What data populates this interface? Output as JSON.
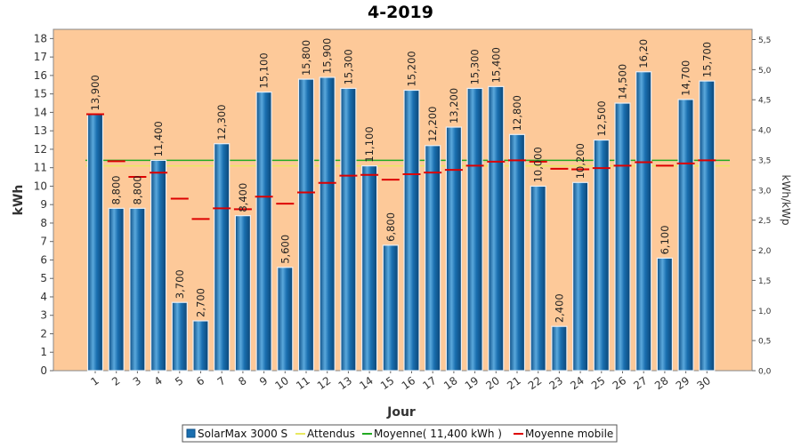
{
  "chart_data": {
    "type": "bar",
    "title": "4-2019",
    "xlabel": "Jour",
    "ylabel": "kWh",
    "y2label": "kWh/kWp",
    "ylim": [
      0,
      18.5
    ],
    "y2lim": [
      0,
      5.67
    ],
    "yticks": [
      "0",
      "1",
      "2",
      "3",
      "4",
      "5",
      "6",
      "7",
      "8",
      "9",
      "10",
      "11",
      "12",
      "13",
      "14",
      "15",
      "16",
      "17",
      "18"
    ],
    "y2ticks": [
      "0,0",
      "0,5",
      "1,0",
      "1,5",
      "2,0",
      "2,5",
      "3,0",
      "3,5",
      "4,0",
      "4,5",
      "5,0",
      "5,5"
    ],
    "categories": [
      "1",
      "2",
      "3",
      "4",
      "5",
      "6",
      "7",
      "8",
      "9",
      "10",
      "11",
      "12",
      "13",
      "14",
      "15",
      "16",
      "17",
      "18",
      "19",
      "20",
      "21",
      "22",
      "23",
      "24",
      "25",
      "26",
      "27",
      "28",
      "29",
      "30"
    ],
    "series": [
      {
        "name": "SolarMax 3000 S",
        "kind": "bar",
        "color": "#1a6fb0",
        "values": [
          13.9,
          8.8,
          8.8,
          11.4,
          3.7,
          2.7,
          12.3,
          8.4,
          15.1,
          5.6,
          15.8,
          15.9,
          15.3,
          11.1,
          6.8,
          15.2,
          12.2,
          13.2,
          15.3,
          15.4,
          12.8,
          10.0,
          2.4,
          10.2,
          12.5,
          14.5,
          16.2,
          6.1,
          14.7,
          15.7
        ],
        "labels": [
          "13,900",
          "8,800",
          "8,800",
          "11,400",
          "3,700",
          "2,700",
          "12,300",
          "8,400",
          "15,100",
          "5,600",
          "15,800",
          "15,900",
          "15,300",
          "11,100",
          "6,800",
          "15,200",
          "12,200",
          "13,200",
          "15,300",
          "15,400",
          "12,800",
          "10,000",
          "2,400",
          "10,200",
          "12,500",
          "14,500",
          "16,20",
          "6,100",
          "14,700",
          "15,700"
        ]
      },
      {
        "name": "Attendus",
        "kind": "line",
        "color": "#e8e860",
        "value": 11.1
      },
      {
        "name": "Moyenne( 11,400 kWh )",
        "kind": "line",
        "color": "#22aa22",
        "value": 11.4
      },
      {
        "name": "Moyenne mobile",
        "kind": "dash",
        "color": "#dd0000",
        "values": [
          13.9,
          11.35,
          10.5,
          10.73,
          9.32,
          8.22,
          8.8,
          8.75,
          9.43,
          9.05,
          9.66,
          10.18,
          10.57,
          10.61,
          10.35,
          10.65,
          10.74,
          10.88,
          11.11,
          11.33,
          11.4,
          11.33,
          10.94,
          10.91,
          10.98,
          11.11,
          11.3,
          11.11,
          11.23,
          11.4
        ]
      }
    ],
    "grid": false,
    "legend_position": "bottom"
  },
  "colors": {
    "plot_background": "#fdc999",
    "bar": "#1a6fb0",
    "bar_light": "#5aa8dc",
    "bar_dark": "#0d4f86"
  }
}
